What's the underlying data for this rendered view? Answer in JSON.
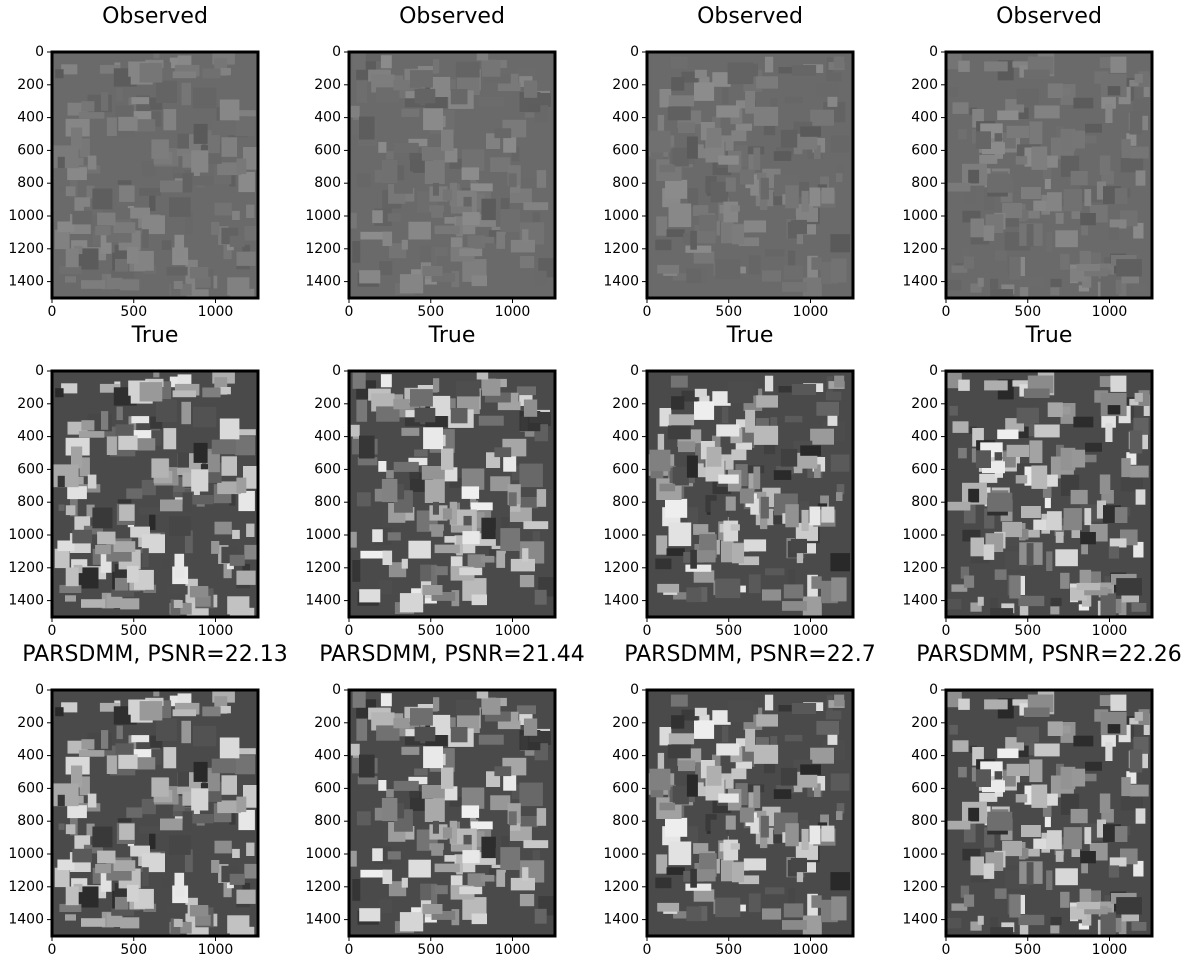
{
  "chart_data": [
    {
      "type": "image",
      "title": "Observed",
      "xlim": [
        0,
        1260
      ],
      "ylim": [
        0,
        1500
      ],
      "y_inverted": true,
      "xticks": [
        0,
        500,
        1000
      ],
      "yticks": [
        0,
        200,
        400,
        600,
        800,
        1000,
        1200,
        1400
      ]
    },
    {
      "type": "image",
      "title": "Observed",
      "xlim": [
        0,
        1260
      ],
      "ylim": [
        0,
        1500
      ],
      "y_inverted": true,
      "xticks": [
        0,
        500,
        1000
      ],
      "yticks": [
        0,
        200,
        400,
        600,
        800,
        1000,
        1200,
        1400
      ]
    },
    {
      "type": "image",
      "title": "Observed",
      "xlim": [
        0,
        1260
      ],
      "ylim": [
        0,
        1500
      ],
      "y_inverted": true,
      "xticks": [
        0,
        500,
        1000
      ],
      "yticks": [
        0,
        200,
        400,
        600,
        800,
        1000,
        1200,
        1400
      ]
    },
    {
      "type": "image",
      "title": "Observed",
      "xlim": [
        0,
        1260
      ],
      "ylim": [
        0,
        1500
      ],
      "y_inverted": true,
      "xticks": [
        0,
        500,
        1000
      ],
      "yticks": [
        0,
        200,
        400,
        600,
        800,
        1000,
        1200,
        1400
      ]
    },
    {
      "type": "image",
      "title": "True",
      "xlim": [
        0,
        1260
      ],
      "ylim": [
        0,
        1500
      ],
      "y_inverted": true,
      "xticks": [
        0,
        500,
        1000
      ],
      "yticks": [
        0,
        200,
        400,
        600,
        800,
        1000,
        1200,
        1400
      ]
    },
    {
      "type": "image",
      "title": "True",
      "xlim": [
        0,
        1260
      ],
      "ylim": [
        0,
        1500
      ],
      "y_inverted": true,
      "xticks": [
        0,
        500,
        1000
      ],
      "yticks": [
        0,
        200,
        400,
        600,
        800,
        1000,
        1200,
        1400
      ]
    },
    {
      "type": "image",
      "title": "True",
      "xlim": [
        0,
        1260
      ],
      "ylim": [
        0,
        1500
      ],
      "y_inverted": true,
      "xticks": [
        0,
        500,
        1000
      ],
      "yticks": [
        0,
        200,
        400,
        600,
        800,
        1000,
        1200,
        1400
      ]
    },
    {
      "type": "image",
      "title": "True",
      "xlim": [
        0,
        1260
      ],
      "ylim": [
        0,
        1500
      ],
      "y_inverted": true,
      "xticks": [
        0,
        500,
        1000
      ],
      "yticks": [
        0,
        200,
        400,
        600,
        800,
        1000,
        1200,
        1400
      ]
    },
    {
      "type": "image",
      "title": "PARSDMM, PSNR=22.13",
      "xlim": [
        0,
        1260
      ],
      "ylim": [
        0,
        1500
      ],
      "y_inverted": true,
      "xticks": [
        0,
        500,
        1000
      ],
      "yticks": [
        0,
        200,
        400,
        600,
        800,
        1000,
        1200,
        1400
      ]
    },
    {
      "type": "image",
      "title": "PARSDMM, PSNR=21.44",
      "xlim": [
        0,
        1260
      ],
      "ylim": [
        0,
        1500
      ],
      "y_inverted": true,
      "xticks": [
        0,
        500,
        1000
      ],
      "yticks": [
        0,
        200,
        400,
        600,
        800,
        1000,
        1200,
        1400
      ]
    },
    {
      "type": "image",
      "title": "PARSDMM, PSNR=22.7",
      "xlim": [
        0,
        1260
      ],
      "ylim": [
        0,
        1500
      ],
      "y_inverted": true,
      "xticks": [
        0,
        500,
        1000
      ],
      "yticks": [
        0,
        200,
        400,
        600,
        800,
        1000,
        1200,
        1400
      ]
    },
    {
      "type": "image",
      "title": "PARSDMM, PSNR=22.26",
      "xlim": [
        0,
        1260
      ],
      "ylim": [
        0,
        1500
      ],
      "y_inverted": true,
      "xticks": [
        0,
        500,
        1000
      ],
      "yticks": [
        0,
        200,
        400,
        600,
        800,
        1000,
        1200,
        1400
      ]
    }
  ]
}
